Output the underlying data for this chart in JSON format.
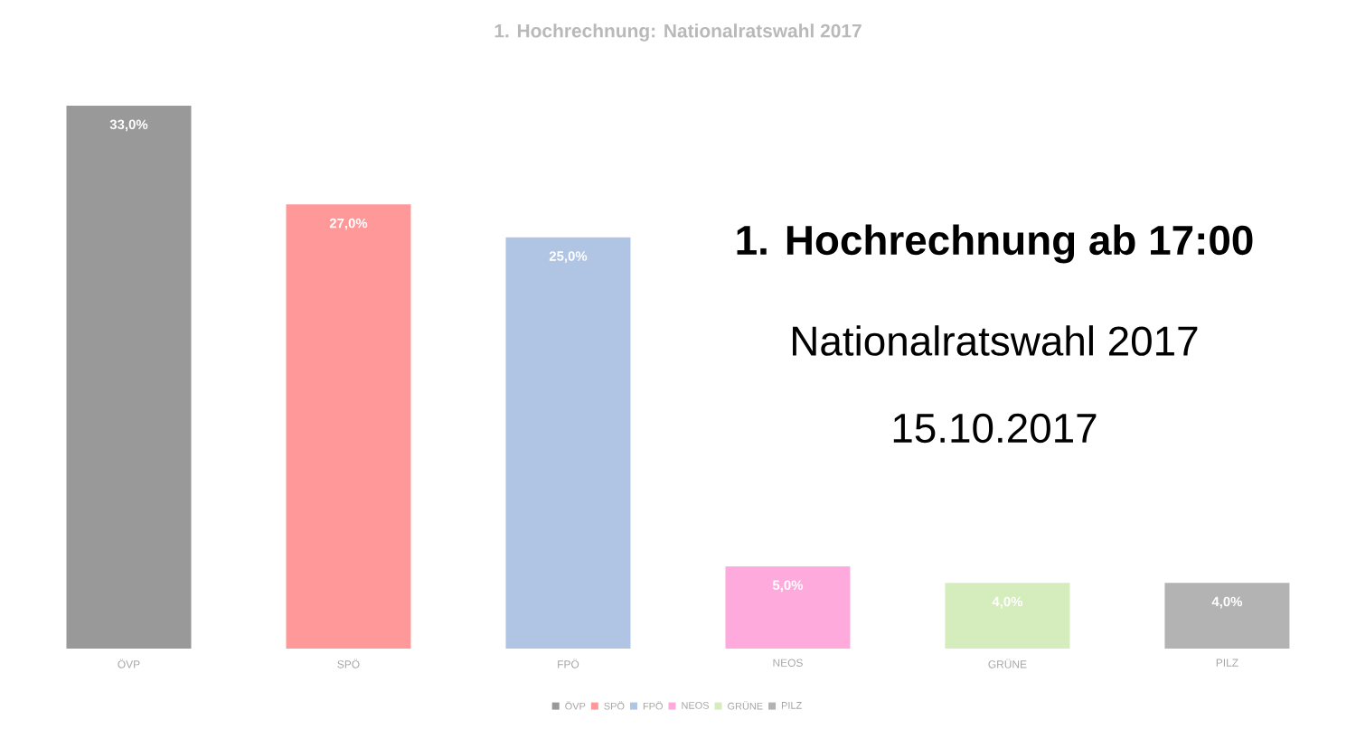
{
  "chart_data": {
    "type": "bar",
    "title": "1. Hochrechnung: Nationalratswahl 2017",
    "categories": [
      "ÖVP",
      "SPÖ",
      "FPÖ",
      "NEOS",
      "GRÜNE",
      "PILZ"
    ],
    "stacked": true,
    "series": [
      {
        "name": "ÖVP",
        "color": "#999999",
        "values": [
          33,
          null,
          null,
          null,
          null,
          null
        ],
        "value_labels": [
          "33,0%",
          null,
          null,
          null,
          null,
          null
        ]
      },
      {
        "name": "SPÖ",
        "color": "#ff9999",
        "values": [
          null,
          27,
          null,
          null,
          null,
          null
        ],
        "value_labels": [
          null,
          "27,0%",
          null,
          null,
          null,
          null
        ]
      },
      {
        "name": "FPÖ",
        "color": "#b0c4e4",
        "values": [
          null,
          null,
          25,
          null,
          null,
          null
        ],
        "value_labels": [
          null,
          null,
          "25,0%",
          null,
          null,
          null
        ]
      },
      {
        "name": "NEOS",
        "color": "#ffaadd",
        "values": [
          null,
          null,
          null,
          5,
          null,
          null
        ],
        "value_labels": [
          null,
          null,
          null,
          "5,0%",
          null,
          null
        ]
      },
      {
        "name": "GRÜNE",
        "color": "#d5ecbc",
        "values": [
          null,
          null,
          null,
          null,
          4,
          null
        ],
        "value_labels": [
          null,
          null,
          null,
          null,
          "4,0%",
          null
        ]
      },
      {
        "name": "PILZ",
        "color": "#b3b3b3",
        "values": [
          null,
          null,
          null,
          null,
          null,
          4
        ],
        "value_labels": [
          null,
          null,
          null,
          null,
          null,
          "4,0%"
        ]
      }
    ],
    "ylim": [
      0,
      33
    ],
    "legend": "bottom",
    "annotations": [
      "1. Hochrechnung ab 17:00",
      "Nationalratswahl 2017",
      "15.10.2017"
    ]
  }
}
